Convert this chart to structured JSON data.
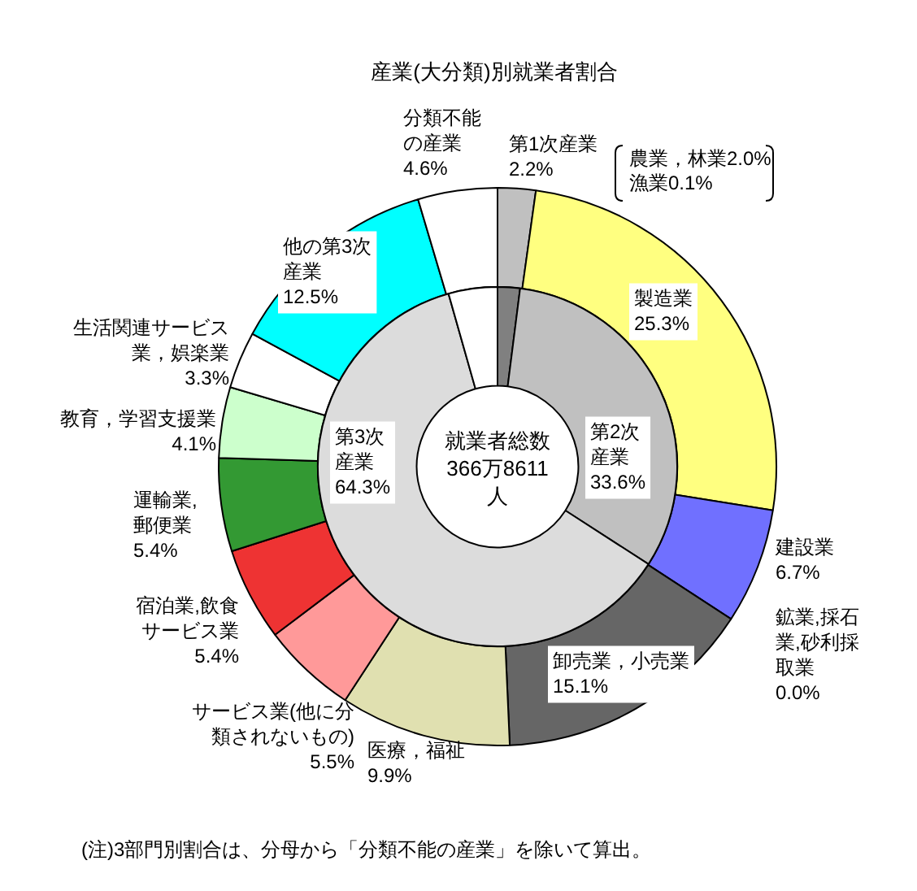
{
  "chart_data": [
    {
      "type": "donut",
      "title": "産業(大分類)別就業者割合",
      "categories": [
        "第1次産業",
        "製造業",
        "建設業",
        "鉱業,採石業,砂利採取業",
        "卸売業，小売業",
        "医療，福祉",
        "サービス業(他に分類されないもの)",
        "宿泊業,飲食サービス業",
        "運輸業,郵便業",
        "教育，学習支援業",
        "生活関連サービス業，娯楽業",
        "他の第3次産業",
        "分類不能の産業"
      ],
      "values": [
        2.2,
        25.3,
        6.7,
        0.0,
        15.1,
        9.9,
        5.5,
        5.4,
        5.4,
        4.1,
        3.3,
        12.5,
        4.6
      ],
      "colors": [
        "#c0c0c0",
        "#ffff80",
        "#7070ff",
        "#ffffff",
        "#666666",
        "#e0e0b0",
        "#ff9999",
        "#ee3333",
        "#339933",
        "#ccffcc",
        "#ffffff",
        "#00ffff",
        "#ffffff"
      ],
      "value_labels": [
        "2.2%",
        "25.3%",
        "6.7%",
        "0.0%",
        "15.1%",
        "9.9%",
        "5.5%",
        "5.4%",
        "5.4%",
        "4.1%",
        "3.3%",
        "12.5%",
        "4.6%"
      ],
      "annotations": [
        "農業，林業2.0%",
        "漁業0.1%",
        "(注)3部門別割合は、分母から「分類不能の産業」を除いて算出。"
      ]
    },
    {
      "type": "donut",
      "categories": [
        null,
        "第2次産業",
        "第3次産業",
        null
      ],
      "values": [
        2.1,
        33.6,
        64.3,
        4.6
      ],
      "colors": [
        "#808080",
        "#c0c0c0",
        "#dcdcdc",
        "#ffffff"
      ],
      "value_labels": [
        null,
        "33.6%",
        "64.3%",
        null
      ],
      "annotations": [
        "就業者総数366万8611人"
      ]
    }
  ]
}
